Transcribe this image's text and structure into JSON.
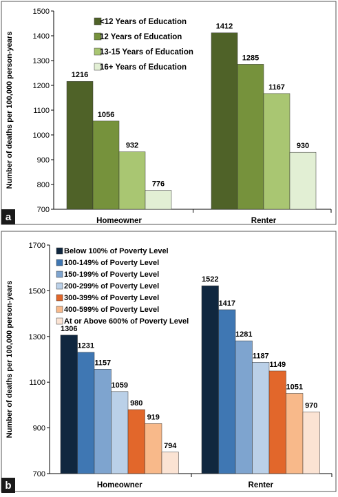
{
  "chart_data": [
    {
      "type": "bar",
      "panel_label": "a",
      "categories": [
        "Homeowner",
        "Renter"
      ],
      "ylabel": "Number of deaths per 100,000 person-years",
      "ylim": [
        700,
        1500
      ],
      "yticks": [
        700,
        800,
        900,
        1000,
        1100,
        1200,
        1300,
        1400,
        1500
      ],
      "grid": false,
      "legend_position": "top-left",
      "series": [
        {
          "name": "<12 Years of Education",
          "color": "#4f6228",
          "values": [
            1216,
            1412
          ]
        },
        {
          "name": "12 Years of Education",
          "color": "#76923c",
          "values": [
            1056,
            1285
          ]
        },
        {
          "name": "13-15 Years of Education",
          "color": "#a9c672",
          "values": [
            932,
            1167
          ]
        },
        {
          "name": "16+ Years of Education",
          "color": "#e2efd4",
          "values": [
            776,
            930
          ]
        }
      ]
    },
    {
      "type": "bar",
      "panel_label": "b",
      "categories": [
        "Homeowner",
        "Renter"
      ],
      "ylabel": "Number of deaths per 100,000 person-years",
      "ylim": [
        700,
        1700
      ],
      "yticks": [
        700,
        900,
        1100,
        1300,
        1500,
        1700
      ],
      "grid": false,
      "legend_position": "top-left",
      "series": [
        {
          "name": "Below 100% of Poverty Level",
          "color": "#10273f",
          "values": [
            1306,
            1522
          ]
        },
        {
          "name": "100-149% of Poverty Level",
          "color": "#3f77b3",
          "values": [
            1231,
            1417
          ]
        },
        {
          "name": "150-199% of Poverty Level",
          "color": "#7ea4cf",
          "values": [
            1157,
            1281
          ]
        },
        {
          "name": "200-299% of Poverty Level",
          "color": "#bad0e8",
          "values": [
            1059,
            1187
          ]
        },
        {
          "name": "300-399% of Poverty Level",
          "color": "#e2672b",
          "values": [
            980,
            1149
          ]
        },
        {
          "name": "400-599% of Poverty Level",
          "color": "#f8b98a",
          "values": [
            919,
            1051
          ]
        },
        {
          "name": "At or Above 600% of Poverty Level",
          "color": "#fbe3d3",
          "values": [
            794,
            970
          ]
        }
      ]
    }
  ]
}
